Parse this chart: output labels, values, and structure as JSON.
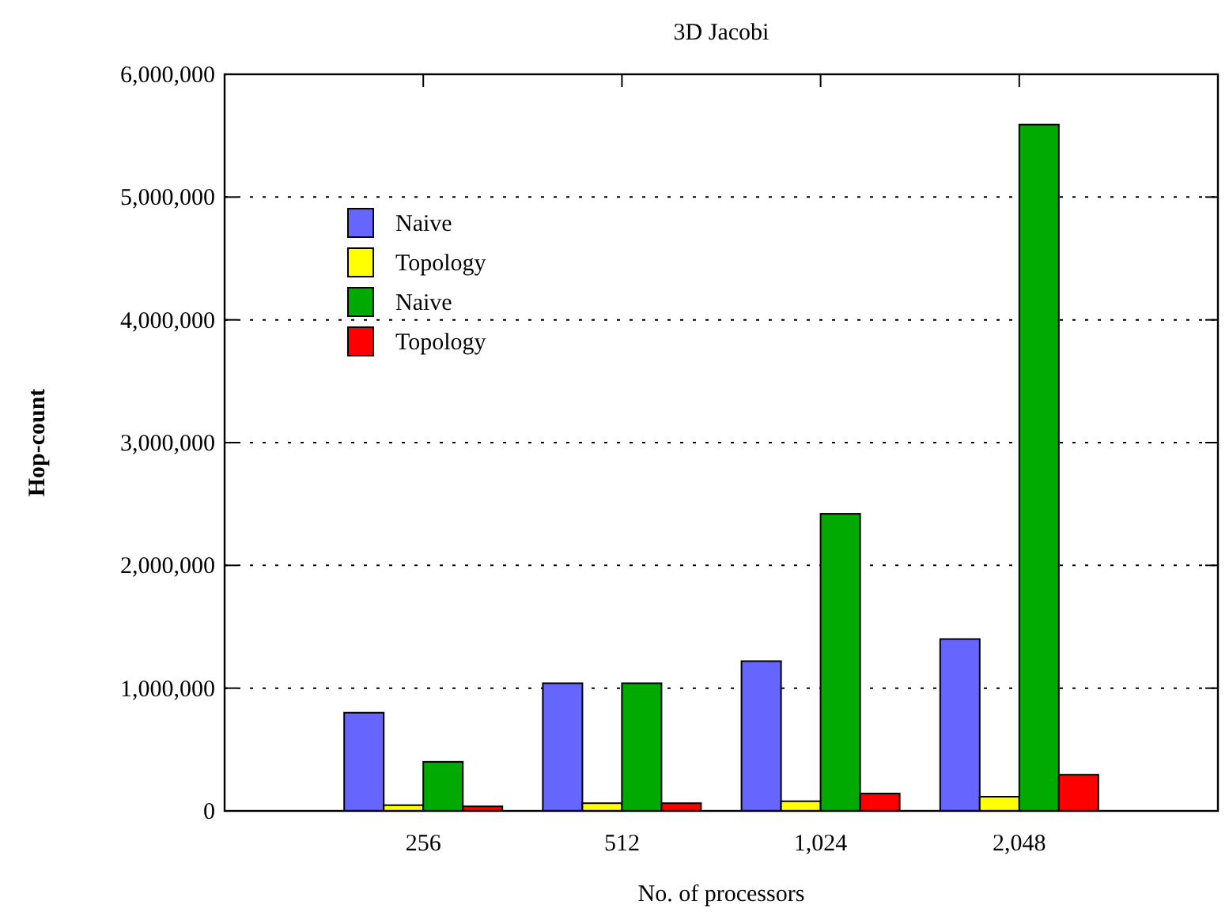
{
  "chart_data": {
    "type": "bar",
    "title": "3D Jacobi",
    "xlabel": "No. of processors",
    "ylabel": "Hop-count",
    "categories": [
      "256",
      "512",
      "1,024",
      "2,048"
    ],
    "series": [
      {
        "name": "Naive",
        "color": "#6666ff",
        "values": [
          800000,
          1040000,
          1220000,
          1400000
        ]
      },
      {
        "name": "Topology",
        "color": "#ffff00",
        "values": [
          47000,
          63000,
          79000,
          116000
        ]
      },
      {
        "name": "Naive",
        "color": "#00aa00",
        "values": [
          400000,
          1040000,
          2420000,
          5590000
        ]
      },
      {
        "name": "Topology",
        "color": "#ff0000",
        "values": [
          37000,
          63000,
          142000,
          295000
        ]
      }
    ],
    "ylim": [
      0,
      6000000
    ],
    "yticks": [
      {
        "value": 0,
        "label": "0"
      },
      {
        "value": 1000000,
        "label": "1,000,000"
      },
      {
        "value": 2000000,
        "label": "2,000,000"
      },
      {
        "value": 3000000,
        "label": "3,000,000"
      },
      {
        "value": 4000000,
        "label": "4,000,000"
      },
      {
        "value": 5000000,
        "label": "5,000,000"
      },
      {
        "value": 6000000,
        "label": "6,000,000"
      }
    ],
    "grid": "y",
    "legend": "top left"
  }
}
